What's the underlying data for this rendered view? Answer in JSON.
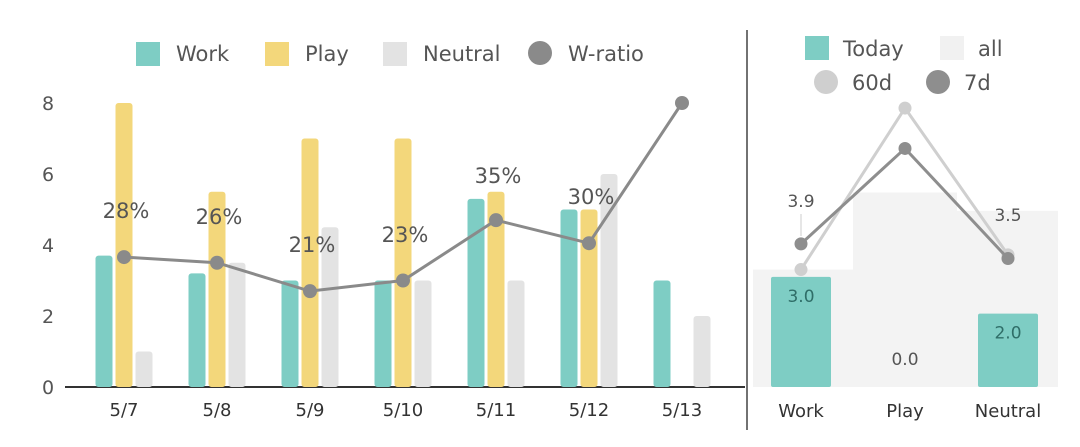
{
  "chart_data": [
    {
      "type": "bar",
      "title": "",
      "categories": [
        "5/7",
        "5/8",
        "5/9",
        "5/10",
        "5/11",
        "5/12",
        "5/13"
      ],
      "ylim": [
        0,
        8
      ],
      "yticks": [
        "0",
        "2",
        "4",
        "6",
        "8"
      ],
      "legend": [
        {
          "name": "Work",
          "shape": "square",
          "color": "#7ecdc4"
        },
        {
          "name": "Play",
          "shape": "square",
          "color": "#f3d77b"
        },
        {
          "name": "Neutral",
          "shape": "square",
          "color": "#e3e3e3"
        },
        {
          "name": "W-ratio",
          "shape": "circle",
          "color": "#8a8a8a"
        }
      ],
      "legend_position": "top",
      "series": [
        {
          "name": "Work",
          "color": "#7ecdc4",
          "values": [
            3.7,
            3.2,
            3.0,
            3.0,
            5.3,
            5.0,
            3.0
          ]
        },
        {
          "name": "Play",
          "color": "#f3d77b",
          "values": [
            8.0,
            5.5,
            7.0,
            7.0,
            5.5,
            5.0,
            0
          ]
        },
        {
          "name": "Neutral",
          "color": "#e3e3e3",
          "values": [
            1.0,
            3.5,
            4.5,
            3.0,
            3.0,
            6.0,
            2.0
          ]
        },
        {
          "name": "W-ratio",
          "type": "line",
          "color": "#8a8a8a",
          "values": [
            3.66,
            3.5,
            2.7,
            3.0,
            4.7,
            4.05,
            8.0
          ],
          "labels": [
            "28%",
            "26%",
            "21%",
            "23%",
            "35%",
            "30%",
            ""
          ]
        }
      ]
    },
    {
      "type": "bar",
      "categories": [
        "Work",
        "Play",
        "Neutral"
      ],
      "ylim": [
        0,
        8
      ],
      "legend": [
        {
          "name": "Today",
          "shape": "square",
          "color": "#7ecdc4"
        },
        {
          "name": "all",
          "shape": "square",
          "color": "#f1f1f1"
        },
        {
          "name": "60d",
          "shape": "circle",
          "color": "#cfcfcf"
        },
        {
          "name": "7d",
          "shape": "circle",
          "color": "#8e8e8e"
        }
      ],
      "legend_position": "top",
      "series": [
        {
          "name": "all",
          "color": "#f3f3f3",
          "values": [
            3.2,
            5.3,
            4.8
          ]
        },
        {
          "name": "Today",
          "color": "#7ecdc4",
          "values": [
            3.0,
            0.0,
            2.0
          ],
          "labels": [
            "3.0",
            "0.0",
            "2.0"
          ]
        },
        {
          "name": "60d",
          "type": "line",
          "color": "#cfcfcf",
          "values": [
            3.2,
            7.6,
            3.6
          ]
        },
        {
          "name": "7d",
          "type": "line",
          "color": "#8e8e8e",
          "values": [
            3.9,
            6.5,
            3.5
          ],
          "labels": [
            "3.9",
            "",
            "3.5"
          ]
        }
      ]
    }
  ]
}
